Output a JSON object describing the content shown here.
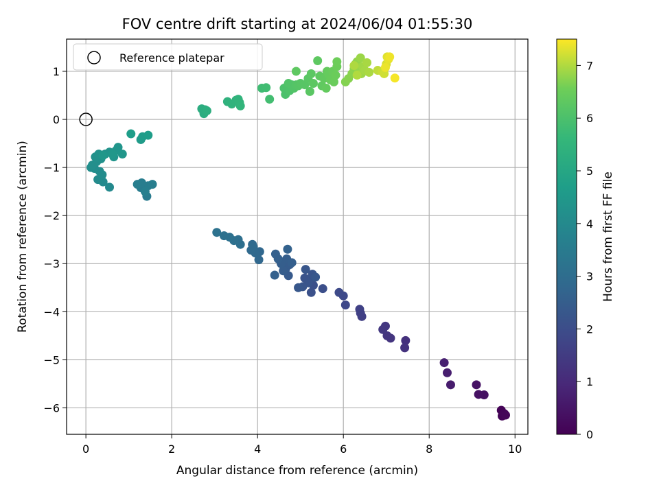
{
  "chart_data": {
    "type": "scatter",
    "title": "FOV centre drift starting at 2024/06/04 01:55:30",
    "xlabel": "Angular distance from reference (arcmin)",
    "ylabel": "Rotation from reference (arcmin)",
    "xlim": [
      -0.45,
      10.3
    ],
    "ylim": [
      -6.55,
      1.67
    ],
    "xticks": [
      0,
      2,
      4,
      6,
      8,
      10
    ],
    "xtick_labels": [
      "0",
      "2",
      "4",
      "6",
      "8",
      "10"
    ],
    "yticks": [
      1,
      0,
      -1,
      -2,
      -3,
      -4,
      -5,
      -6
    ],
    "ytick_labels": [
      "1",
      "0",
      "−1",
      "−2",
      "−3",
      "−4",
      "−5",
      "−6"
    ],
    "grid": true,
    "legend": {
      "location": "top-left",
      "entries": [
        "Reference platepar"
      ]
    },
    "reference_point": {
      "x": 0,
      "y": 0
    },
    "colorbar": {
      "label": "Hours from first FF file",
      "colormap": "viridis",
      "range": [
        0,
        7.5
      ],
      "ticks": [
        0,
        1,
        2,
        3,
        4,
        5,
        6,
        7
      ],
      "tick_labels": [
        "0",
        "1",
        "2",
        "3",
        "4",
        "5",
        "6",
        "7"
      ]
    },
    "points": [
      [
        9.68,
        -6.05,
        0.05
      ],
      [
        9.7,
        -6.17,
        0.08
      ],
      [
        9.75,
        -6.12,
        0.1
      ],
      [
        9.78,
        -6.15,
        0.12
      ],
      [
        9.28,
        -5.73,
        0.35
      ],
      [
        9.15,
        -5.72,
        0.38
      ],
      [
        9.1,
        -5.52,
        0.42
      ],
      [
        8.5,
        -5.52,
        0.65
      ],
      [
        8.42,
        -5.27,
        0.7
      ],
      [
        8.35,
        -5.06,
        0.75
      ],
      [
        7.45,
        -4.6,
        1.2
      ],
      [
        7.43,
        -4.75,
        1.25
      ],
      [
        7.1,
        -4.55,
        1.3
      ],
      [
        7.02,
        -4.5,
        1.33
      ],
      [
        6.98,
        -4.3,
        1.36
      ],
      [
        6.92,
        -4.37,
        1.4
      ],
      [
        6.43,
        -4.1,
        1.6
      ],
      [
        6.4,
        -4.03,
        1.63
      ],
      [
        6.38,
        -3.95,
        1.66
      ],
      [
        6.05,
        -3.86,
        1.85
      ],
      [
        6.0,
        -3.67,
        1.88
      ],
      [
        5.9,
        -3.6,
        1.9
      ],
      [
        5.52,
        -3.52,
        2.05
      ],
      [
        5.3,
        -3.45,
        2.1
      ],
      [
        5.25,
        -3.6,
        2.12
      ],
      [
        5.2,
        -3.35,
        2.15
      ],
      [
        5.1,
        -3.3,
        2.18
      ],
      [
        5.28,
        -3.22,
        2.2
      ],
      [
        5.18,
        -3.4,
        2.22
      ],
      [
        5.05,
        -3.48,
        2.25
      ],
      [
        5.12,
        -3.12,
        2.27
      ],
      [
        5.35,
        -3.28,
        2.29
      ],
      [
        4.95,
        -3.5,
        2.3
      ],
      [
        4.72,
        -3.25,
        2.4
      ],
      [
        4.66,
        -3.1,
        2.43
      ],
      [
        4.75,
        -3.02,
        2.46
      ],
      [
        4.6,
        -3.15,
        2.48
      ],
      [
        4.68,
        -2.9,
        2.5
      ],
      [
        4.55,
        -3.0,
        2.52
      ],
      [
        4.8,
        -2.98,
        2.54
      ],
      [
        4.48,
        -2.9,
        2.56
      ],
      [
        4.42,
        -2.8,
        2.58
      ],
      [
        4.4,
        -3.24,
        2.6
      ],
      [
        4.7,
        -2.7,
        2.62
      ],
      [
        4.03,
        -2.92,
        2.8
      ],
      [
        4.05,
        -2.75,
        2.83
      ],
      [
        3.95,
        -2.78,
        2.86
      ],
      [
        3.88,
        -2.6,
        2.88
      ],
      [
        3.85,
        -2.72,
        2.9
      ],
      [
        3.9,
        -2.65,
        2.92
      ],
      [
        3.6,
        -2.6,
        3.05
      ],
      [
        3.55,
        -2.5,
        3.08
      ],
      [
        3.45,
        -2.52,
        3.1
      ],
      [
        3.35,
        -2.45,
        3.12
      ],
      [
        3.22,
        -2.42,
        3.14
      ],
      [
        3.05,
        -2.35,
        3.16
      ],
      [
        1.42,
        -1.6,
        3.5
      ],
      [
        1.35,
        -1.45,
        3.52
      ],
      [
        1.28,
        -1.42,
        3.54
      ],
      [
        1.45,
        -1.38,
        3.56
      ],
      [
        1.3,
        -1.32,
        3.58
      ],
      [
        1.2,
        -1.35,
        3.6
      ],
      [
        1.55,
        -1.35,
        3.62
      ],
      [
        1.38,
        -1.5,
        3.64
      ],
      [
        0.55,
        -1.41,
        4.0
      ],
      [
        0.4,
        -1.3,
        4.02
      ],
      [
        0.28,
        -1.25,
        4.05
      ],
      [
        0.38,
        -1.15,
        4.08
      ],
      [
        0.32,
        -1.08,
        4.1
      ],
      [
        0.2,
        -1.02,
        4.12
      ],
      [
        0.12,
        -1.0,
        4.15
      ],
      [
        0.15,
        -0.95,
        4.18
      ],
      [
        0.25,
        -0.88,
        4.2
      ],
      [
        0.35,
        -0.82,
        4.22
      ],
      [
        0.22,
        -0.78,
        4.25
      ],
      [
        0.3,
        -0.72,
        4.28
      ],
      [
        0.45,
        -0.72,
        4.3
      ],
      [
        0.55,
        -0.68,
        4.33
      ],
      [
        0.65,
        -0.78,
        4.36
      ],
      [
        0.7,
        -0.65,
        4.38
      ],
      [
        0.75,
        -0.58,
        4.4
      ],
      [
        0.85,
        -0.72,
        4.42
      ],
      [
        0.62,
        -0.72,
        4.44
      ],
      [
        0.4,
        -0.75,
        4.46
      ],
      [
        1.28,
        -0.42,
        4.6
      ],
      [
        1.32,
        -0.36,
        4.62
      ],
      [
        1.45,
        -0.33,
        4.65
      ],
      [
        1.05,
        -0.3,
        4.68
      ],
      [
        2.75,
        0.12,
        5.2
      ],
      [
        2.7,
        0.22,
        5.23
      ],
      [
        2.78,
        0.2,
        5.26
      ],
      [
        2.82,
        0.18,
        5.28
      ],
      [
        3.3,
        0.37,
        5.4
      ],
      [
        3.4,
        0.32,
        5.43
      ],
      [
        3.5,
        0.4,
        5.45
      ],
      [
        3.55,
        0.42,
        5.47
      ],
      [
        3.58,
        0.35,
        5.49
      ],
      [
        3.6,
        0.28,
        5.5
      ],
      [
        4.1,
        0.65,
        5.8
      ],
      [
        4.2,
        0.66,
        5.83
      ],
      [
        4.28,
        0.42,
        5.86
      ],
      [
        4.65,
        0.52,
        6.0
      ],
      [
        4.62,
        0.65,
        6.02
      ],
      [
        4.7,
        0.7,
        6.04
      ],
      [
        4.75,
        0.6,
        6.06
      ],
      [
        4.8,
        0.72,
        6.08
      ],
      [
        4.72,
        0.75,
        6.1
      ],
      [
        4.85,
        0.65,
        6.12
      ],
      [
        4.9,
        0.72,
        6.14
      ],
      [
        4.95,
        0.7,
        6.16
      ],
      [
        5.0,
        0.75,
        6.18
      ],
      [
        5.1,
        0.72,
        6.2
      ],
      [
        5.18,
        0.85,
        6.22
      ],
      [
        5.22,
        0.58,
        6.24
      ],
      [
        5.25,
        0.95,
        6.26
      ],
      [
        5.3,
        0.75,
        6.28
      ],
      [
        5.4,
        1.22,
        6.3
      ],
      [
        5.45,
        0.9,
        6.32
      ],
      [
        5.5,
        0.7,
        6.34
      ],
      [
        5.55,
        0.85,
        6.36
      ],
      [
        5.6,
        0.65,
        6.38
      ],
      [
        5.62,
        1.0,
        6.4
      ],
      [
        5.65,
        0.95,
        6.42
      ],
      [
        5.7,
        0.82,
        6.44
      ],
      [
        5.75,
        1.0,
        6.46
      ],
      [
        5.78,
        0.78,
        6.48
      ],
      [
        5.82,
        0.92,
        6.5
      ],
      [
        5.85,
        1.1,
        6.52
      ],
      [
        5.85,
        1.2,
        6.54
      ],
      [
        4.9,
        1.0,
        6.3
      ],
      [
        6.05,
        0.78,
        6.7
      ],
      [
        6.12,
        0.85,
        6.72
      ],
      [
        6.2,
        0.95,
        6.74
      ],
      [
        6.25,
        1.05,
        6.76
      ],
      [
        6.28,
        1.15,
        6.78
      ],
      [
        6.32,
        1.2,
        6.8
      ],
      [
        6.35,
        1.0,
        6.82
      ],
      [
        6.38,
        1.08,
        6.84
      ],
      [
        6.4,
        1.28,
        6.86
      ],
      [
        6.42,
        0.95,
        6.88
      ],
      [
        6.45,
        1.1,
        6.9
      ],
      [
        6.5,
        1.02,
        6.92
      ],
      [
        6.55,
        1.18,
        6.94
      ],
      [
        6.6,
        0.98,
        6.96
      ],
      [
        6.25,
        1.12,
        6.98
      ],
      [
        6.32,
        0.92,
        7.0
      ],
      [
        6.8,
        1.02,
        7.1
      ],
      [
        6.9,
        1.0,
        7.15
      ],
      [
        6.95,
        0.95,
        7.2
      ],
      [
        7.0,
        1.15,
        7.25
      ],
      [
        7.02,
        1.3,
        7.3
      ],
      [
        7.05,
        1.25,
        7.35
      ],
      [
        7.08,
        1.3,
        7.4
      ],
      [
        6.98,
        1.08,
        7.38
      ],
      [
        7.2,
        0.86,
        7.45
      ]
    ]
  }
}
